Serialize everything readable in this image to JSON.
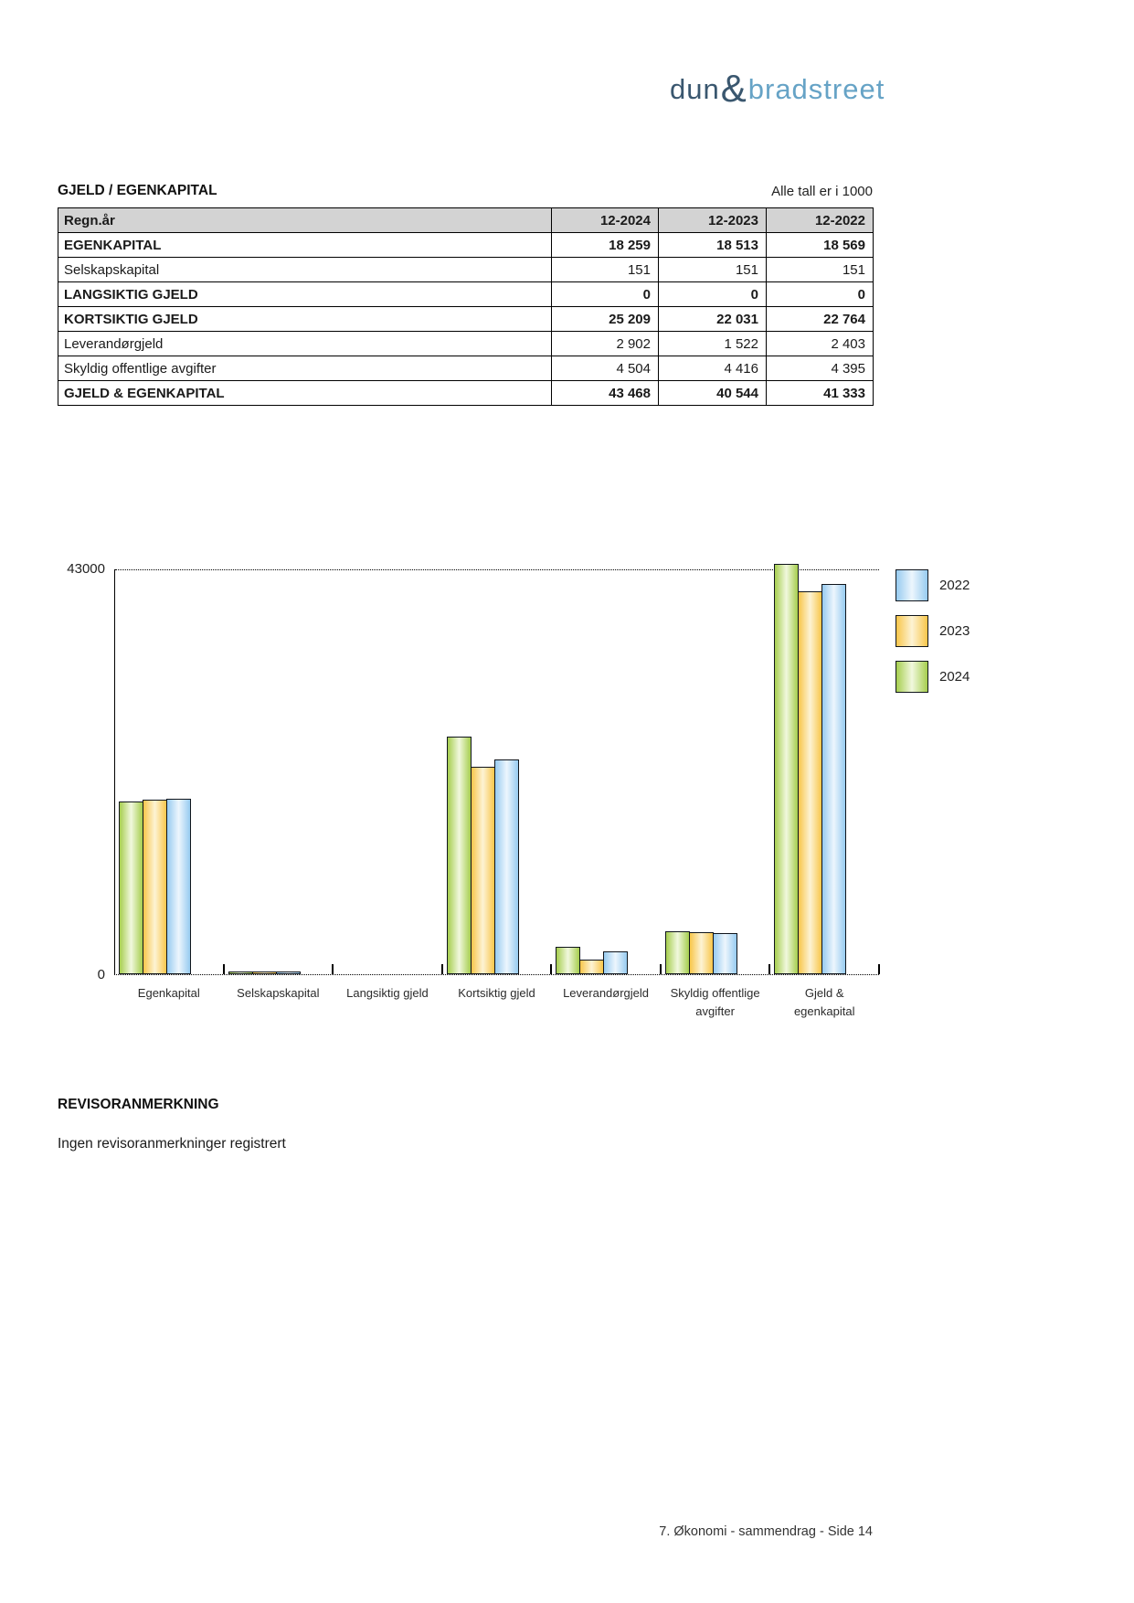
{
  "logo": {
    "dun": "dun",
    "amp": "&",
    "bradstreet": "bradstreet"
  },
  "section": {
    "title": "GJELD / EGENKAPITAL",
    "units_note": "Alle tall er i 1000"
  },
  "table": {
    "columns": [
      "Regn.år",
      "12-2024",
      "12-2023",
      "12-2022"
    ],
    "rows": [
      {
        "label": "EGENKAPITAL",
        "bold": true,
        "values": [
          "18 259",
          "18 513",
          "18 569"
        ]
      },
      {
        "label": "Selskapskapital",
        "bold": false,
        "values": [
          "151",
          "151",
          "151"
        ]
      },
      {
        "label": "LANGSIKTIG GJELD",
        "bold": true,
        "values": [
          "0",
          "0",
          "0"
        ]
      },
      {
        "label": "KORTSIKTIG GJELD",
        "bold": true,
        "values": [
          "25 209",
          "22 031",
          "22 764"
        ]
      },
      {
        "label": "Leverandørgjeld",
        "bold": false,
        "values": [
          "2 902",
          "1 522",
          "2 403"
        ]
      },
      {
        "label": "Skyldig offentlige avgifter",
        "bold": false,
        "values": [
          "4 504",
          "4 416",
          "4 395"
        ]
      },
      {
        "label": "GJELD & EGENKAPITAL",
        "bold": true,
        "values": [
          "43 468",
          "40 544",
          "41 333"
        ]
      }
    ]
  },
  "chart_data": {
    "type": "bar",
    "title": "",
    "categories": [
      "Egenkapital",
      "Selskapskapital",
      "Langsiktig gjeld",
      "Kortsiktig gjeld",
      "Leverandørgjeld",
      "Skyldig offentlige\navgifter",
      "Gjeld &\negenkapital"
    ],
    "series": [
      {
        "name": "2024",
        "color": "#a6ce4e",
        "color_light": "#f1f8de",
        "values": [
          18259,
          151,
          0,
          25209,
          2902,
          4504,
          43468
        ]
      },
      {
        "name": "2023",
        "color": "#f8c64a",
        "color_light": "#fdf3d4",
        "values": [
          18513,
          151,
          0,
          22031,
          1522,
          4416,
          40544
        ]
      },
      {
        "name": "2022",
        "color": "#97cbf0",
        "color_light": "#edf6fd",
        "values": [
          18569,
          151,
          0,
          22764,
          2403,
          4395,
          41333
        ]
      }
    ],
    "legend_order": [
      "2022",
      "2023",
      "2024"
    ],
    "legend_position": "right",
    "grid": "top-dotted-line-only",
    "ylim": [
      0,
      43000
    ],
    "ytick_top": "43000",
    "ytick_zero": "0",
    "xlabel": "",
    "ylabel": ""
  },
  "revisor": {
    "title": "REVISORANMERKNING",
    "text": "Ingen revisoranmerkninger registrert"
  },
  "footer": {
    "text": "7. Økonomi - sammendrag - Side 14"
  }
}
